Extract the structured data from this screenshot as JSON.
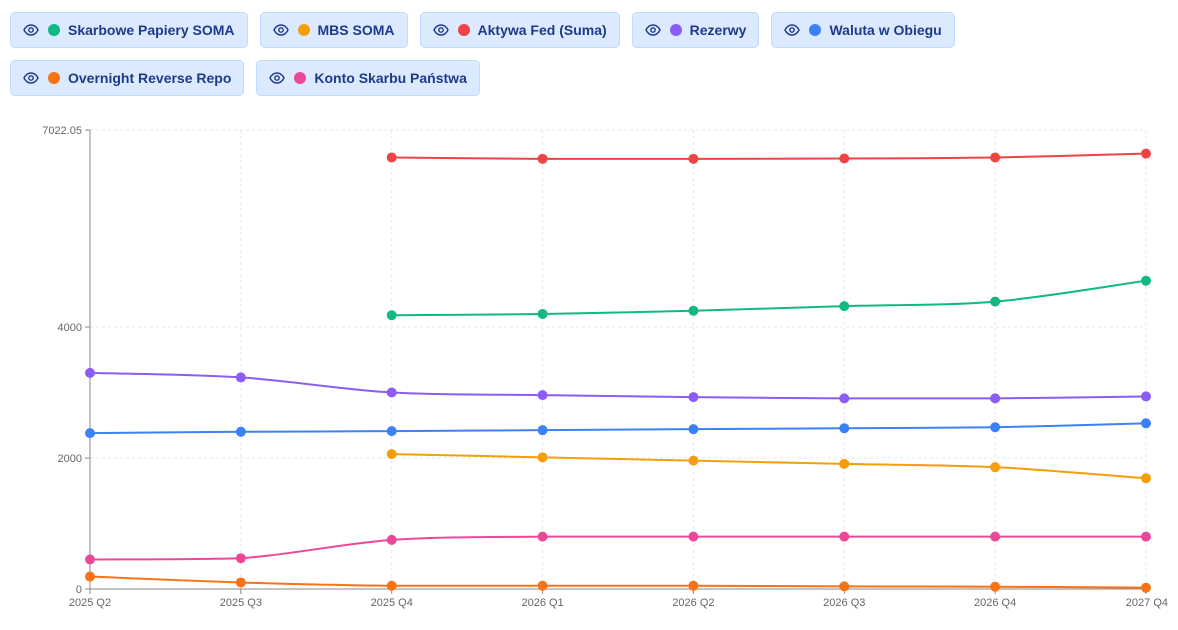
{
  "legend": [
    {
      "label": "Skarbowe Papiery SOMA",
      "color": "#10b981",
      "icon": "eye-icon"
    },
    {
      "label": "MBS SOMA",
      "color": "#f59e0b",
      "icon": "eye-icon"
    },
    {
      "label": "Aktywa Fed (Suma)",
      "color": "#ef4444",
      "icon": "eye-icon"
    },
    {
      "label": "Rezerwy",
      "color": "#8b5cf6",
      "icon": "eye-icon"
    },
    {
      "label": "Waluta w Obiegu",
      "color": "#3b82f6",
      "icon": "eye-icon"
    },
    {
      "label": "Overnight Reverse Repo",
      "color": "#f97316",
      "icon": "eye-icon"
    },
    {
      "label": "Konto Skarbu Państwa",
      "color": "#ec4899",
      "icon": "eye-icon"
    }
  ],
  "chart_data": {
    "type": "line",
    "categories": [
      "2025 Q2",
      "2025 Q3",
      "2025 Q4",
      "2026 Q1",
      "2026 Q2",
      "2026 Q3",
      "2026 Q4",
      "2027 Q4"
    ],
    "y_ticks": [
      0,
      2000,
      4000,
      7022.05
    ],
    "y_tick_labels": [
      "0",
      "2000",
      "4000",
      "7022.05"
    ],
    "ylim": [
      0,
      7022.05
    ],
    "y_scale": "piecewise-linear",
    "grid": true,
    "series": [
      {
        "name": "Skarbowe Papiery SOMA",
        "color": "#10b981",
        "values": [
          null,
          null,
          4180,
          4200,
          4250,
          4320,
          4390,
          4710
        ]
      },
      {
        "name": "MBS SOMA",
        "color": "#f59e0b",
        "values": [
          null,
          null,
          2060,
          2010,
          1960,
          1910,
          1860,
          1690
        ]
      },
      {
        "name": "Aktywa Fed (Suma)",
        "color": "#ef4444",
        "values": [
          null,
          null,
          6600,
          6580,
          6580,
          6585,
          6600,
          6660
        ]
      },
      {
        "name": "Rezerwy",
        "color": "#8b5cf6",
        "values": [
          3300,
          3230,
          3000,
          2960,
          2930,
          2910,
          2910,
          2940
        ]
      },
      {
        "name": "Waluta w Obiegu",
        "color": "#3b82f6",
        "values": [
          2380,
          2400,
          2410,
          2425,
          2440,
          2455,
          2470,
          2530
        ]
      },
      {
        "name": "Overnight Reverse Repo",
        "color": "#f97316",
        "values": [
          190,
          100,
          50,
          50,
          50,
          40,
          35,
          20
        ]
      },
      {
        "name": "Konto Skarbu Państwa",
        "color": "#ec4899",
        "values": [
          450,
          470,
          750,
          800,
          800,
          800,
          800,
          800
        ]
      }
    ]
  }
}
